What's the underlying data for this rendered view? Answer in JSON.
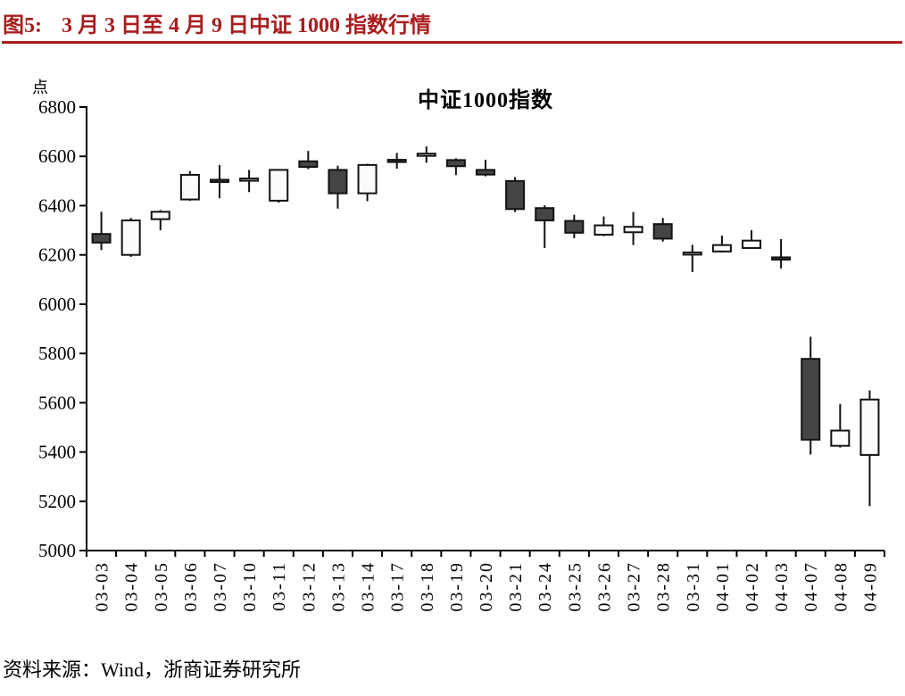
{
  "header": {
    "label": "图5:",
    "caption": "3 月 3 日至 4 月 9 日中证 1000 指数行情",
    "accent_color": "#A81E1E"
  },
  "footer": {
    "source": "资料来源：Wind，浙商证券研究所"
  },
  "chart_data": {
    "type": "candlestick",
    "title": "中证1000指数",
    "unit_label": "点",
    "xlabel": "",
    "ylabel": "点",
    "ylim": [
      5000,
      6800
    ],
    "y_step": 200,
    "grid": false,
    "legend_position": "none",
    "colors": {
      "up_fill": "#FBFBFB",
      "down_fill": "#454545",
      "stroke": "#111111"
    },
    "categories": [
      "03-03",
      "03-04",
      "03-05",
      "03-06",
      "03-07",
      "03-10",
      "03-11",
      "03-12",
      "03-13",
      "03-14",
      "03-17",
      "03-18",
      "03-19",
      "03-20",
      "03-21",
      "03-24",
      "03-25",
      "03-26",
      "03-27",
      "03-28",
      "03-31",
      "04-01",
      "04-02",
      "04-03",
      "04-07",
      "04-08",
      "04-09"
    ],
    "series": [
      {
        "name": "中证1000指数",
        "ohlc_format": [
          "open",
          "high",
          "low",
          "close"
        ],
        "ohlc": [
          [
            6285,
            6375,
            6220,
            6250
          ],
          [
            6200,
            6350,
            6192,
            6340
          ],
          [
            6345,
            6382,
            6300,
            6375
          ],
          [
            6425,
            6540,
            6420,
            6525
          ],
          [
            6505,
            6565,
            6430,
            6496
          ],
          [
            6504,
            6545,
            6455,
            6510
          ],
          [
            6420,
            6548,
            6412,
            6545
          ],
          [
            6580,
            6622,
            6548,
            6557
          ],
          [
            6545,
            6562,
            6388,
            6450
          ],
          [
            6450,
            6570,
            6418,
            6565
          ],
          [
            6586,
            6614,
            6550,
            6582
          ],
          [
            6606,
            6640,
            6574,
            6611
          ],
          [
            6585,
            6592,
            6524,
            6560
          ],
          [
            6545,
            6586,
            6519,
            6526
          ],
          [
            6500,
            6516,
            6374,
            6386
          ],
          [
            6390,
            6401,
            6228,
            6340
          ],
          [
            6338,
            6363,
            6268,
            6290
          ],
          [
            6282,
            6356,
            6276,
            6320
          ],
          [
            6292,
            6374,
            6240,
            6314
          ],
          [
            6325,
            6350,
            6254,
            6266
          ],
          [
            6206,
            6241,
            6130,
            6210
          ],
          [
            6214,
            6278,
            6210,
            6240
          ],
          [
            6228,
            6300,
            6226,
            6258
          ],
          [
            6190,
            6264,
            6145,
            6186
          ],
          [
            5778,
            5868,
            5390,
            5450
          ],
          [
            5425,
            5595,
            5418,
            5487
          ],
          [
            5388,
            5650,
            5180,
            5613
          ]
        ]
      }
    ]
  }
}
